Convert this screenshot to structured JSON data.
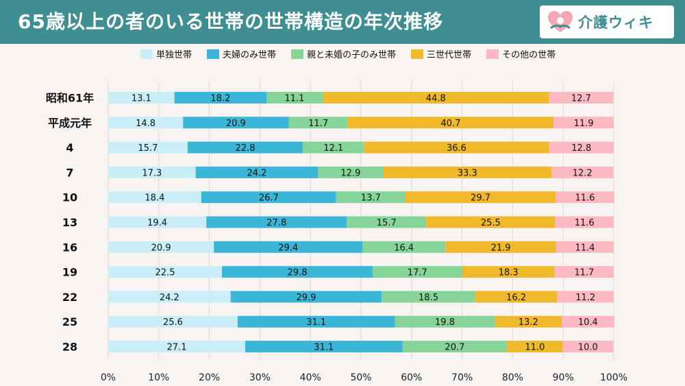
{
  "header": {
    "title": "65歳以上の者のいる世帯の世帯構造の年次推移",
    "logo_text": "介護ウィキ"
  },
  "chart_data": {
    "type": "bar",
    "orientation": "horizontal",
    "stacked": true,
    "percent_scale": true,
    "categories": [
      "昭和61年",
      "平成元年",
      "4",
      "7",
      "10",
      "13",
      "16",
      "19",
      "22",
      "25",
      "28"
    ],
    "series": [
      {
        "name": "単独世帯",
        "color": "#c9eef7",
        "values": [
          13.1,
          14.8,
          15.7,
          17.3,
          18.4,
          19.4,
          20.9,
          22.5,
          24.2,
          25.6,
          27.1
        ]
      },
      {
        "name": "夫婦のみ世帯",
        "color": "#3bb6d6",
        "values": [
          18.2,
          20.9,
          22.8,
          24.2,
          26.7,
          27.8,
          29.4,
          29.8,
          29.9,
          31.1,
          31.1
        ]
      },
      {
        "name": "親と未婚の子のみ世帯",
        "color": "#86d49a",
        "values": [
          11.1,
          11.7,
          12.1,
          12.9,
          13.7,
          15.7,
          16.4,
          17.7,
          18.5,
          19.8,
          20.7
        ]
      },
      {
        "name": "三世代世帯",
        "color": "#f0b92c",
        "values": [
          44.8,
          40.7,
          36.6,
          33.3,
          29.7,
          25.5,
          21.9,
          18.3,
          16.2,
          13.2,
          11.0
        ]
      },
      {
        "name": "その他の世帯",
        "color": "#fdb9c2",
        "values": [
          12.7,
          11.9,
          12.8,
          12.2,
          11.6,
          11.6,
          11.4,
          11.7,
          11.2,
          10.4,
          10.0
        ]
      }
    ],
    "x_ticks": [
      "0%",
      "10%",
      "20%",
      "30%",
      "40%",
      "50%",
      "60%",
      "70%",
      "80%",
      "90%",
      "100%"
    ],
    "xlim": [
      0,
      100
    ],
    "grid": true,
    "legend_position": "top"
  }
}
